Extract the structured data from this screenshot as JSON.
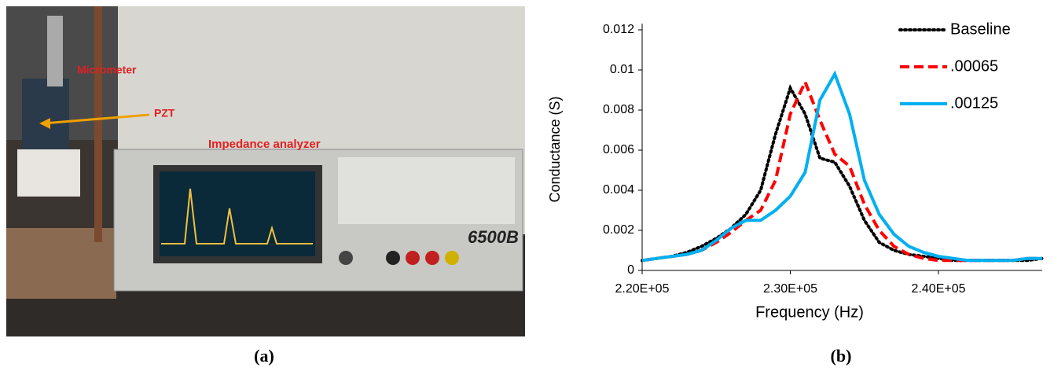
{
  "photo": {
    "labels": [
      "Micrometer",
      "PZT",
      "Impedance analyzer"
    ],
    "model": "6500B",
    "caption": "(a)"
  },
  "chart_data": {
    "type": "line",
    "caption": "(b)",
    "x_label": "Frequency (Hz)",
    "y_label": "Conductance (S)",
    "x": [
      220000,
      221000,
      222000,
      223000,
      224000,
      225000,
      226000,
      227000,
      228000,
      229000,
      230000,
      231000,
      232000,
      233000,
      234000,
      235000,
      236000,
      237000,
      238000,
      239000,
      240000,
      241000,
      242000,
      243000,
      244000,
      245000,
      246000,
      247000
    ],
    "series": [
      {
        "name": "Baseline",
        "color": "#000000",
        "style": "dotted",
        "values": [
          0.0005,
          0.0006,
          0.0007,
          0.0009,
          0.0012,
          0.0016,
          0.0021,
          0.0028,
          0.004,
          0.0068,
          0.0091,
          0.0078,
          0.0056,
          0.0054,
          0.0042,
          0.0025,
          0.0014,
          0.001,
          0.0008,
          0.0007,
          0.0006,
          0.0005,
          0.0005,
          0.0005,
          0.0005,
          0.0005,
          0.0005,
          0.0006
        ]
      },
      {
        "name": ".00065",
        "color": "#ff0000",
        "style": "dashed",
        "values": [
          0.0005,
          0.0006,
          0.0007,
          0.0008,
          0.001,
          0.0014,
          0.0019,
          0.0025,
          0.003,
          0.0045,
          0.0078,
          0.0094,
          0.0075,
          0.0058,
          0.0052,
          0.0033,
          0.002,
          0.0012,
          0.0008,
          0.0006,
          0.0005,
          0.0005,
          0.0005,
          0.0005,
          0.0005,
          0.0005,
          0.0006,
          0.0006
        ]
      },
      {
        "name": ".00125",
        "color": "#00b0f0",
        "style": "solid",
        "values": [
          0.0005,
          0.0006,
          0.0007,
          0.0008,
          0.001,
          0.0015,
          0.0021,
          0.0025,
          0.0025,
          0.003,
          0.0037,
          0.0049,
          0.0085,
          0.0098,
          0.0078,
          0.0045,
          0.0028,
          0.0018,
          0.0012,
          0.0009,
          0.0007,
          0.0006,
          0.0005,
          0.0005,
          0.0005,
          0.0005,
          0.0006,
          0.0006
        ]
      }
    ],
    "xlim": [
      220000,
      247000
    ],
    "xticks": [
      {
        "value": 220000,
        "label": "2.20E+05"
      },
      {
        "value": 230000,
        "label": "2.30E+05"
      },
      {
        "value": 240000,
        "label": "2.40E+05"
      }
    ],
    "ylim": [
      0,
      0.012
    ],
    "yticks": [
      0,
      0.002,
      0.004,
      0.006,
      0.008,
      0.01,
      0.012
    ],
    "legend": "top-right"
  }
}
